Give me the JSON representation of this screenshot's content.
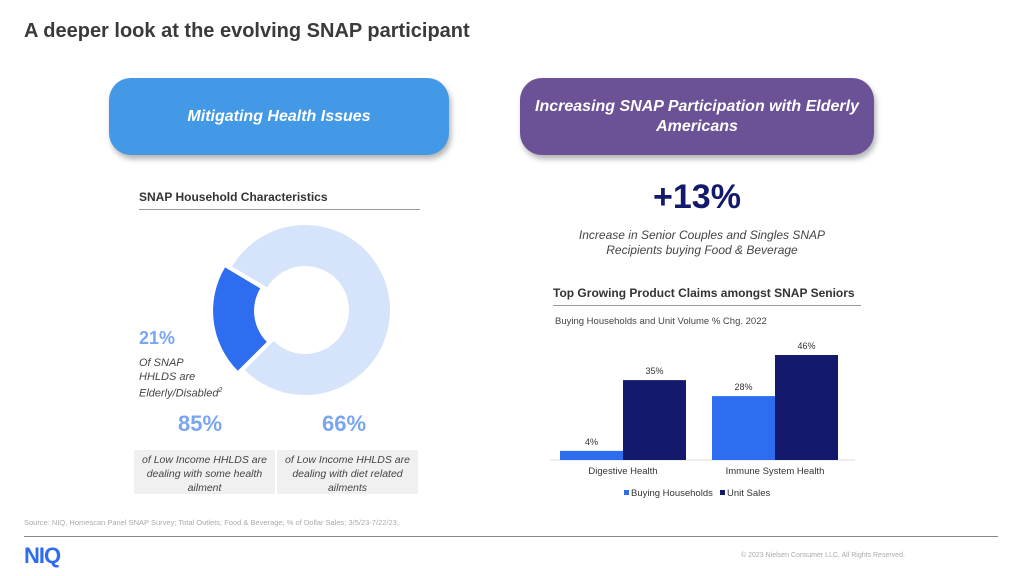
{
  "title": "A deeper look at the evolving SNAP participant",
  "left": {
    "pill": "Mitigating Health Issues",
    "section": "SNAP Household Characteristics",
    "donut_pct": "21%",
    "donut_desc1": "Of SNAP",
    "donut_desc2": "HHLDS are",
    "donut_desc3": "Elderly/Disabled",
    "donut_sup": "2",
    "stat1": "85%",
    "stat1_desc": "of Low Income HHLDS are dealing with some health ailment",
    "stat2": "66%",
    "stat2_desc": "of Low Income HHLDS are dealing with diet related ailments"
  },
  "right": {
    "pill": "Increasing SNAP Participation with Elderly Americans",
    "big": "+13%",
    "big_desc1": "Increase in Senior Couples and Singles SNAP",
    "big_desc2": "Recipients buying Food & Beverage",
    "section": "Top Growing Product Claims amongst SNAP Seniors"
  },
  "footer": {
    "source": "Source: NIQ, Homescan Panel SNAP Survey; Total Outlets; Food & Beverage; % of Dollar Sales; 3/5/23-7/22/23;",
    "logo": "NIQ",
    "copyright": "© 2023 Nielsen Consumer LLC. All Rights Reserved."
  },
  "colors": {
    "light_blue": "#d6e4fb",
    "blue": "#2e6df0",
    "navy": "#131a6b"
  },
  "chart_data": [
    {
      "type": "pie",
      "title": "SNAP Household Characteristics",
      "slices": [
        {
          "name": "Elderly/Disabled",
          "value": 21
        },
        {
          "name": "Other",
          "value": 79
        }
      ]
    },
    {
      "type": "bar",
      "title": "Top Growing Product Claims amongst SNAP Seniors",
      "subtitle": "Buying Households and Unit Volume % Chg. 2022",
      "categories": [
        "Digestive Health",
        "Immune System Health"
      ],
      "series": [
        {
          "name": "Buying Households",
          "values": [
            4,
            28
          ],
          "labels": [
            "4%",
            "28%"
          ]
        },
        {
          "name": "Unit Sales",
          "values": [
            35,
            46
          ],
          "labels": [
            "35%",
            "46%"
          ]
        }
      ],
      "ylim": [
        0,
        46
      ],
      "legend": "bottom"
    }
  ]
}
